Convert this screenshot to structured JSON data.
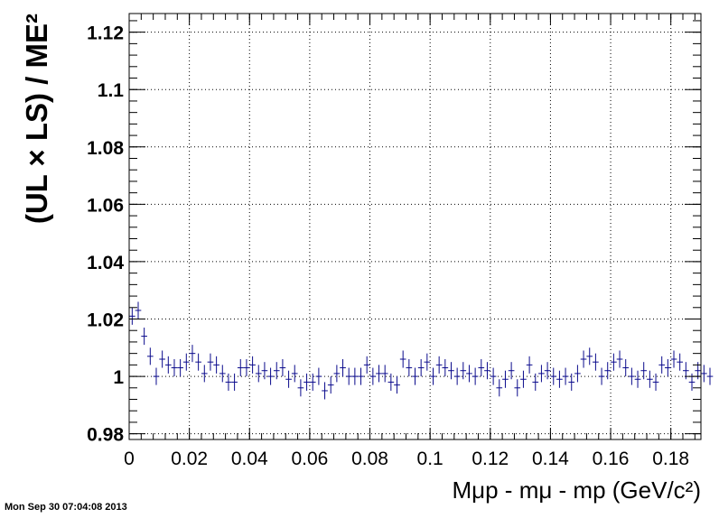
{
  "timestamp": "Mon Sep 30 07:04:08 2013",
  "chart_data": {
    "type": "scatter",
    "style": "error-bars",
    "ylabel": "(UL × LS) / ME²",
    "xlabel": "Mμp - mμ - mp (GeV/c²)",
    "xlim": [
      0,
      0.19
    ],
    "ylim": [
      0.978,
      1.1265
    ],
    "grid": true,
    "marker_color": "#0a0a8c",
    "x_ticks": [
      "0",
      "0.02",
      "0.04",
      "0.06",
      "0.08",
      "0.1",
      "0.12",
      "0.14",
      "0.16",
      "0.18"
    ],
    "y_ticks": [
      "0.98",
      "1",
      "1.02",
      "1.04",
      "1.06",
      "1.08",
      "1.1",
      "1.12"
    ],
    "bin_width": 0.002,
    "x_start": 0.001,
    "y_error": 0.003,
    "values": [
      1.021,
      1.023,
      1.014,
      1.007,
      1.0,
      1.006,
      1.004,
      1.003,
      1.003,
      1.005,
      1.008,
      1.005,
      1.001,
      1.005,
      1.004,
      1.001,
      0.998,
      0.998,
      1.003,
      1.003,
      1.004,
      1.001,
      1.002,
      1.0,
      1.002,
      1.003,
      0.999,
      1.001,
      0.996,
      0.998,
      0.998,
      1.0,
      0.995,
      0.997,
      1.001,
      1.003,
      1.0,
      1.0,
      1.0,
      1.004,
      1.0,
      1.001,
      1.001,
      0.998,
      0.997,
      1.006,
      1.003,
      1.0,
      1.003,
      1.005,
      1.0,
      1.004,
      1.003,
      1.002,
      1.0,
      1.002,
      1.001,
      1.0,
      1.003,
      1.002,
      1.0,
      0.996,
      0.999,
      1.002,
      0.996,
      0.999,
      1.004,
      0.998,
      1.001,
      1.002,
      1.0,
      0.999,
      1.0,
      0.998,
      1.001,
      1.006,
      1.007,
      1.005,
      1.0,
      1.002,
      1.005,
      1.006,
      1.003,
      1.0,
      0.999,
      1.002,
      0.999,
      0.998,
      1.004,
      1.003,
      1.006,
      1.005,
      1.002,
      0.998,
      1.002,
      1.001,
      1.0
    ]
  }
}
